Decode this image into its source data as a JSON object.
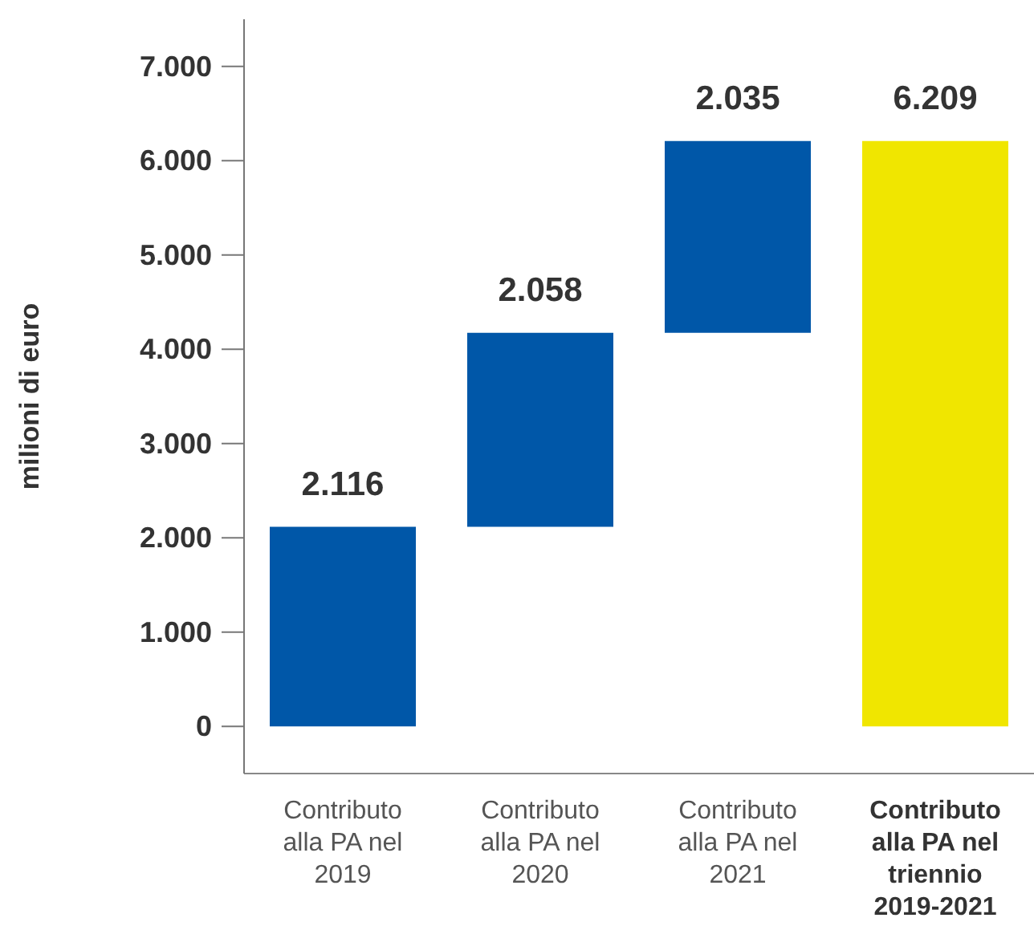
{
  "chart_data": {
    "type": "bar",
    "ylabel": "milioni di euro",
    "categories": [
      "Contributo alla PA nel 2019",
      "Contributo alla PA nel 2020",
      "Contributo alla PA nel 2021",
      "Contributo alla PA nel triennio 2019-2021"
    ],
    "values": [
      2116,
      2058,
      2035,
      6209
    ],
    "base": [
      0,
      2116,
      4174,
      0
    ],
    "colors": [
      "#0057a8",
      "#0057a8",
      "#0057a8",
      "#f0e600"
    ],
    "value_labels": [
      "2.116",
      "2.058",
      "2.035",
      "6.209"
    ],
    "ylim": [
      -500,
      7500
    ],
    "yticks": [
      {
        "value": 0,
        "label": "0"
      },
      {
        "value": 1000,
        "label": "1.000"
      },
      {
        "value": 2000,
        "label": "2.000"
      },
      {
        "value": 3000,
        "label": "3.000"
      },
      {
        "value": 4000,
        "label": "4.000"
      },
      {
        "value": 5000,
        "label": "5.000"
      },
      {
        "value": 6000,
        "label": "6.000"
      },
      {
        "value": 7000,
        "label": "7.000"
      }
    ],
    "grid": false,
    "legend": false
  }
}
